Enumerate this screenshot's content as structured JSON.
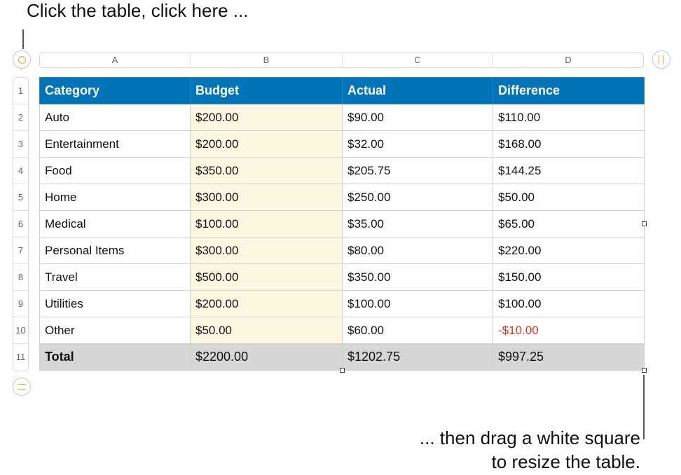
{
  "callouts": {
    "top": "Click the table, click here ...",
    "bottom_line1": "... then drag a white square",
    "bottom_line2": "to resize the table."
  },
  "columns": [
    "A",
    "B",
    "C",
    "D"
  ],
  "row_numbers": [
    "1",
    "2",
    "3",
    "4",
    "5",
    "6",
    "7",
    "8",
    "9",
    "10",
    "11"
  ],
  "header": [
    "Category",
    "Budget",
    "Actual",
    "Difference"
  ],
  "rows": [
    [
      "Auto",
      "$200.00",
      "$90.00",
      "$110.00"
    ],
    [
      "Entertainment",
      "$200.00",
      "$32.00",
      "$168.00"
    ],
    [
      "Food",
      "$350.00",
      "$205.75",
      "$144.25"
    ],
    [
      "Home",
      "$300.00",
      "$250.00",
      "$50.00"
    ],
    [
      "Medical",
      "$100.00",
      "$35.00",
      "$65.00"
    ],
    [
      "Personal Items",
      "$300.00",
      "$80.00",
      "$220.00"
    ],
    [
      "Travel",
      "$500.00",
      "$350.00",
      "$150.00"
    ],
    [
      "Utilities",
      "$200.00",
      "$100.00",
      "$100.00"
    ],
    [
      "Other",
      "$50.00",
      "$60.00",
      "-$10.00"
    ]
  ],
  "total": [
    "Total",
    "$2200.00",
    "$1202.75",
    "$997.25"
  ],
  "colors": {
    "header": "#0073b9",
    "budget_fill": "#fdf6e0",
    "total_fill": "#d6d6d6",
    "negative": "#e0321e",
    "accent": "#f5a623"
  }
}
